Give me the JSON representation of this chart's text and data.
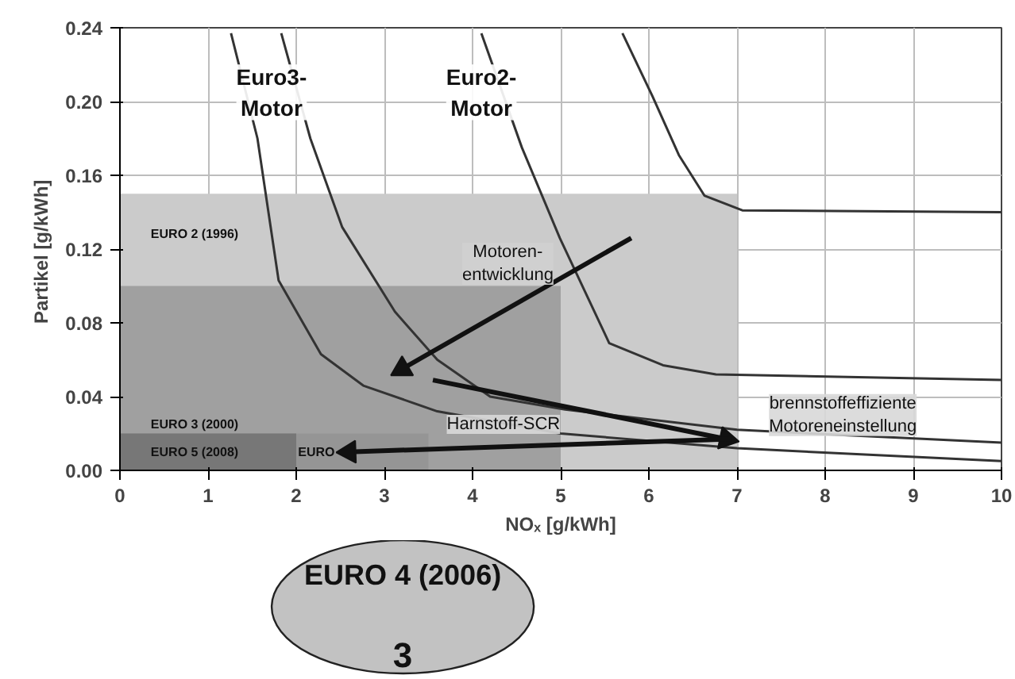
{
  "chart_data": {
    "type": "line",
    "xlabel": "NOₓ [g/kWh]",
    "ylabel": "Partikel  [g/kWh]",
    "xlim": [
      0,
      10
    ],
    "xticks": [
      0,
      1,
      2,
      3,
      4,
      5,
      6,
      7,
      8,
      9,
      10
    ],
    "ylim": [
      0,
      0.24
    ],
    "yticks": [
      {
        "value": 0,
        "label": "0.00"
      },
      {
        "value": 0.04,
        "label": "0.04"
      },
      {
        "value": 0.08,
        "label": "0.08"
      },
      {
        "value": 0.12,
        "label": "0.12"
      },
      {
        "value": 0.16,
        "label": "0.16"
      },
      {
        "value": 0.2,
        "label": "0.20"
      },
      {
        "value": 0.24,
        "label": "0.24"
      }
    ],
    "grid": true,
    "series": [
      {
        "type": "area",
        "color": "#cbcbcb",
        "x": [
          0,
          7
        ],
        "values": [
          0.15,
          0.15
        ]
      },
      {
        "type": "area",
        "color": "#a0a0a0",
        "x": [
          0,
          5
        ],
        "values": [
          0.1,
          0.1
        ]
      },
      {
        "type": "area",
        "color": "#959595",
        "x": [
          0,
          3.5
        ],
        "values": [
          0.02,
          0.02
        ]
      },
      {
        "type": "area",
        "color": "#777777",
        "x": [
          0,
          2
        ],
        "values": [
          0.02,
          0.02
        ]
      },
      {
        "color": "#333333",
        "x": [
          1.26,
          1.56,
          1.8,
          2.28,
          2.76,
          3.6,
          5,
          7,
          10
        ],
        "values": [
          0.237,
          0.18,
          0.103,
          0.063,
          0.046,
          0.032,
          0.02,
          0.012,
          0.005
        ]
      },
      {
        "color": "#333333",
        "x": [
          1.83,
          2.16,
          2.52,
          3.12,
          3.6,
          4.2,
          5.05,
          7,
          10
        ],
        "values": [
          0.237,
          0.18,
          0.132,
          0.086,
          0.06,
          0.04,
          0.033,
          0.022,
          0.015
        ]
      },
      {
        "color": "#333333",
        "x": [
          4.1,
          4.56,
          4.99,
          5.55,
          6.16,
          6.76,
          10
        ],
        "values": [
          0.237,
          0.175,
          0.126,
          0.069,
          0.057,
          0.052,
          0.049
        ]
      },
      {
        "color": "#333333",
        "x": [
          5.7,
          6.04,
          6.34,
          6.63,
          7.06,
          10
        ],
        "values": [
          0.237,
          0.203,
          0.171,
          0.149,
          0.141,
          0.14
        ]
      },
      {
        "color": "#111111",
        "x": [
          5.8,
          3.2
        ],
        "values": [
          0.126,
          0.055
        ]
      },
      {
        "color": "#111111",
        "x": [
          3.55,
          6.88
        ],
        "values": [
          0.049,
          0.017
        ]
      },
      {
        "color": "#111111",
        "x": [
          6.94,
          2.6
        ],
        "values": [
          0.017,
          0.01
        ]
      }
    ],
    "annotations": [
      "EURO 2 (1996)",
      "EURO 3 (2000)",
      "EURO 5 (2008)",
      "EURO",
      "Euro3-\nMotor",
      "Euro2-\nMotor",
      "Motoren-\nentwicklung",
      "Harnstoff-SCR",
      "brennstoffeffiziente\nMotoreneinstellung",
      "EURO 4 (2006)",
      "3"
    ]
  }
}
